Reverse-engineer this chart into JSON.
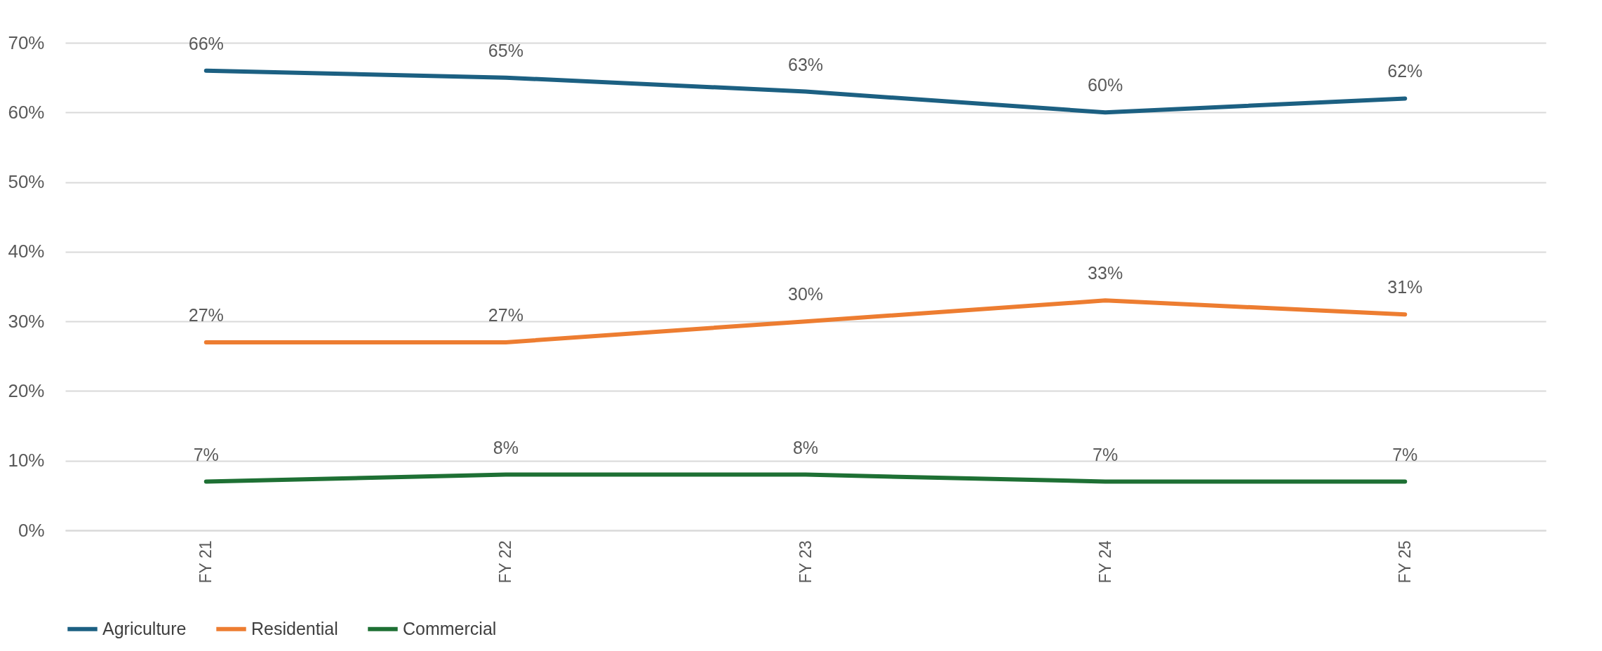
{
  "chart_data": {
    "type": "line",
    "categories": [
      "FY 21",
      "FY 22",
      "FY 23",
      "FY 24",
      "FY 25"
    ],
    "series": [
      {
        "name": "Agriculture",
        "color": "#1c6082",
        "values": [
          66,
          65,
          63,
          60,
          62
        ],
        "value_labels": [
          "66%",
          "65%",
          "63%",
          "60%",
          "62%"
        ]
      },
      {
        "name": "Residential",
        "color": "#ed7d31",
        "values": [
          27,
          27,
          30,
          33,
          31
        ],
        "value_labels": [
          "27%",
          "27%",
          "30%",
          "33%",
          "31%"
        ]
      },
      {
        "name": "Commercial",
        "color": "#1e7034",
        "values": [
          7,
          8,
          8,
          7,
          7
        ],
        "value_labels": [
          "7%",
          "8%",
          "8%",
          "7%",
          "7%"
        ]
      }
    ],
    "ylim": [
      0,
      70
    ],
    "yticks": [
      {
        "value": 0,
        "label": "0%"
      },
      {
        "value": 10,
        "label": "10%"
      },
      {
        "value": 20,
        "label": "20%"
      },
      {
        "value": 30,
        "label": "30%"
      },
      {
        "value": 40,
        "label": "40%"
      },
      {
        "value": 50,
        "label": "50%"
      },
      {
        "value": 60,
        "label": "60%"
      },
      {
        "value": 70,
        "label": "70%"
      }
    ],
    "grid": "y",
    "legend": "bottom",
    "line_style": "solid"
  }
}
